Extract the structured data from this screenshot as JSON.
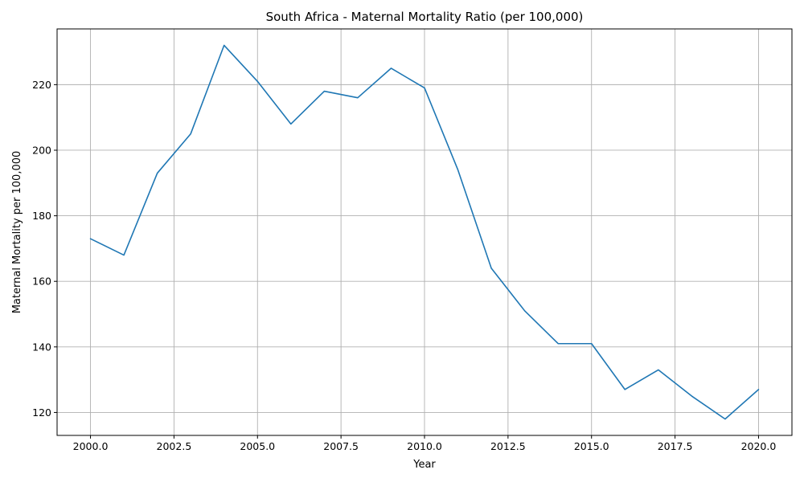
{
  "chart_data": {
    "type": "line",
    "title": "South Africa - Maternal Mortality Ratio (per 100,000)",
    "xlabel": "Year",
    "ylabel": "Maternal Mortality per 100,000",
    "xlim": [
      1999.0,
      2021.0
    ],
    "ylim": [
      113,
      237
    ],
    "xticks": [
      2000.0,
      2002.5,
      2005.0,
      2007.5,
      2010.0,
      2012.5,
      2015.0,
      2017.5,
      2020.0
    ],
    "xtick_labels": [
      "2000.0",
      "2002.5",
      "2005.0",
      "2007.5",
      "2010.0",
      "2012.5",
      "2015.0",
      "2017.5",
      "2020.0"
    ],
    "yticks": [
      120,
      140,
      160,
      180,
      200,
      220
    ],
    "ytick_labels": [
      "120",
      "140",
      "160",
      "180",
      "200",
      "220"
    ],
    "grid": true,
    "series": [
      {
        "color": "#1f77b4",
        "x": [
          2000,
          2001,
          2002,
          2003,
          2004,
          2005,
          2006,
          2007,
          2008,
          2009,
          2010,
          2011,
          2012,
          2013,
          2014,
          2015,
          2016,
          2017,
          2018,
          2019,
          2020
        ],
        "values": [
          173,
          168,
          193,
          205,
          232,
          221,
          208,
          218,
          216,
          225,
          219,
          194,
          164,
          151,
          141,
          141,
          127,
          133,
          125,
          118,
          127
        ]
      }
    ]
  }
}
